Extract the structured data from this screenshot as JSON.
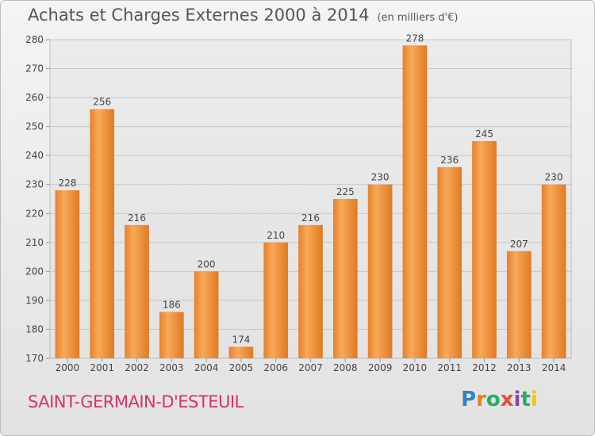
{
  "header": {
    "title": "Achats et Charges Externes 2000 à 2014",
    "units": "(en milliers d'€)"
  },
  "footer": {
    "city": "SAINT-GERMAIN-D'ESTEUIL",
    "logo": {
      "letters": [
        "P",
        "r",
        "o",
        "x",
        "i",
        "t",
        "i"
      ],
      "colors": [
        "#2e86c1",
        "#e67e22",
        "#27ae60",
        "#e74c3c",
        "#8e44ad",
        "#27ae60",
        "#f1c40f"
      ]
    }
  },
  "chart_data": {
    "type": "bar",
    "title": "Achats et Charges Externes 2000 à 2014",
    "subtitle": "(en milliers d'€)",
    "xlabel": "",
    "ylabel": "",
    "categories": [
      "2000",
      "2001",
      "2002",
      "2003",
      "2004",
      "2005",
      "2006",
      "2007",
      "2008",
      "2009",
      "2010",
      "2011",
      "2012",
      "2013",
      "2014"
    ],
    "values": [
      228,
      256,
      216,
      186,
      200,
      174,
      210,
      216,
      225,
      230,
      278,
      236,
      245,
      207,
      230
    ],
    "ylim": [
      170,
      280
    ],
    "yticks": [
      170,
      180,
      190,
      200,
      210,
      220,
      230,
      240,
      250,
      260,
      270,
      280
    ],
    "grid": true,
    "bar_color": "#f0973f"
  }
}
